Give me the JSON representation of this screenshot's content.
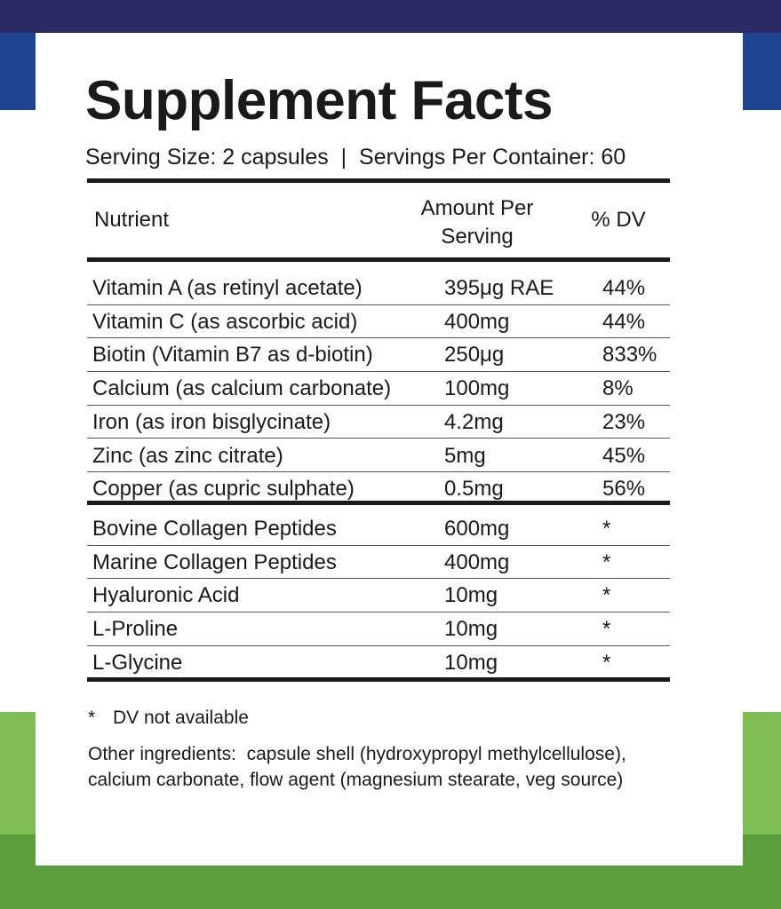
{
  "title": "Supplement Facts",
  "serving": "Serving Size: 2 capsules  |  Servings Per Container: 60",
  "table": {
    "header": [
      "Nutrient",
      "Amount Per Serving",
      "% DV"
    ],
    "groups": [
      [
        [
          "Vitamin A (as retinyl acetate)",
          "395μg RAE",
          "44%"
        ],
        [
          "Vitamin C (as ascorbic acid)",
          "400mg",
          "44%"
        ],
        [
          "Biotin (Vitamin B7 as d-biotin)",
          "250μg",
          "833%"
        ],
        [
          "Calcium (as calcium carbonate)",
          "100mg",
          "8%"
        ],
        [
          "Iron (as iron bisglycinate)",
          "4.2mg",
          "23%"
        ],
        [
          "Zinc (as zinc citrate)",
          "5mg",
          "45%"
        ],
        [
          "Copper (as cupric sulphate)",
          "0.5mg",
          "56%"
        ]
      ],
      [
        [
          "Bovine Collagen Peptides",
          "600mg",
          "*"
        ],
        [
          "Marine Collagen Peptides",
          "400mg",
          "*"
        ],
        [
          "Hyaluronic Acid",
          "10mg",
          "*"
        ],
        [
          "L-Proline",
          "10mg",
          "*"
        ],
        [
          "L-Glycine",
          "10mg",
          "*"
        ]
      ]
    ]
  },
  "footnote": {
    "symbol": "*",
    "text": "DV not available"
  },
  "other_ingredients": [
    "Other ingredients:  capsule shell (hydroxypropyl methylcellulose),",
    "calcium carbonate, flow agent (magnesium stearate, veg source)"
  ]
}
